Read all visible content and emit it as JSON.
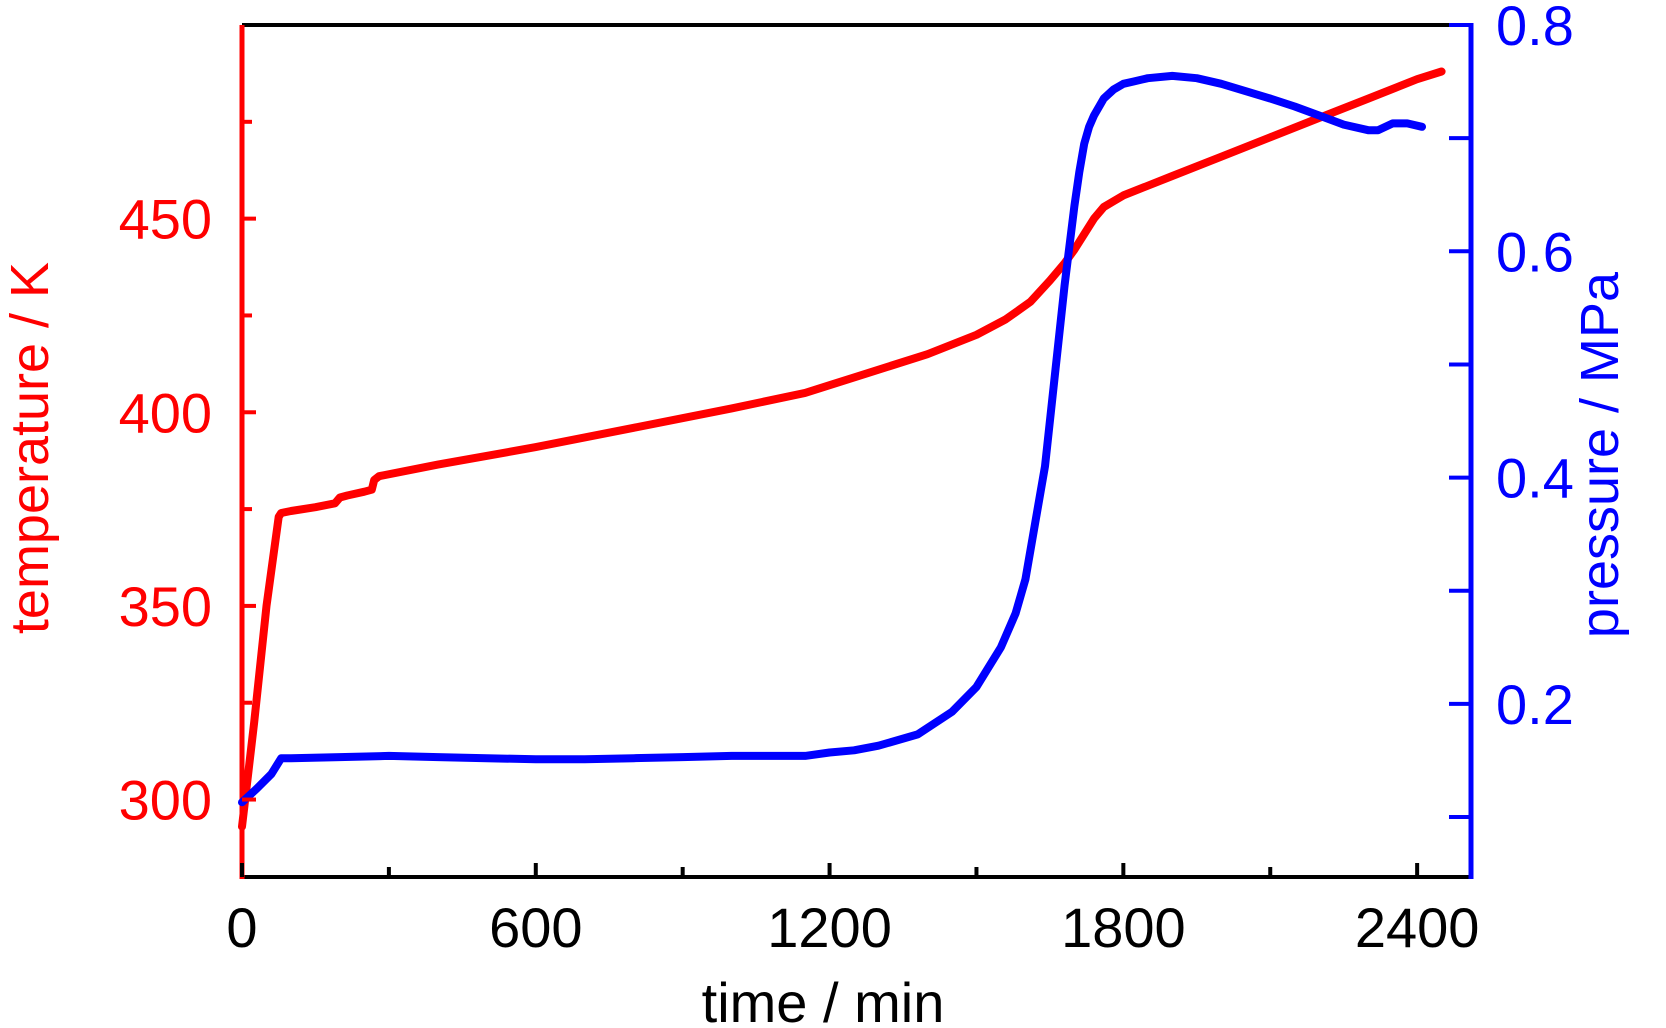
{
  "chart_data": {
    "type": "line",
    "xlabel": "time / min",
    "ylabel_left": "temperature / K",
    "ylabel_right": "pressure / MPa",
    "xlim": [
      0,
      2510
    ],
    "ylim_left": [
      280,
      500
    ],
    "ylim_right": [
      0.047,
      0.8
    ],
    "x_ticks": [
      0,
      600,
      1200,
      1800,
      2400
    ],
    "y_left_ticks": [
      300,
      350,
      400,
      450
    ],
    "y_right_ticks": [
      0.2,
      0.4,
      0.6,
      0.8
    ],
    "x_ticks_minor": [
      300,
      900,
      1500,
      2100
    ],
    "y_left_ticks_minor": [
      325,
      375,
      425,
      475
    ],
    "y_right_ticks_minor": [
      0.1,
      0.3,
      0.5,
      0.7
    ],
    "grid": false,
    "legend": "none",
    "colors": {
      "temperature": "#ff0000",
      "pressure": "#0000ff",
      "axes": "#000000"
    },
    "series": [
      {
        "axis": "left",
        "x": [
          0,
          25,
          50,
          75,
          80,
          100,
          150,
          190,
          200,
          215,
          250,
          265,
          270,
          280,
          400,
          600,
          800,
          1000,
          1150,
          1250,
          1400,
          1500,
          1560,
          1610,
          1650,
          1680,
          1700,
          1720,
          1740,
          1760,
          1780,
          1800,
          1900,
          2000,
          2100,
          2200,
          2300,
          2400,
          2450
        ],
        "y": [
          293,
          320,
          350,
          373,
          374,
          374.5,
          375.5,
          376.5,
          378,
          378.5,
          379.5,
          380,
          382.5,
          383.5,
          386.5,
          391,
          396,
          401,
          405,
          409,
          415,
          420,
          424,
          428.5,
          434,
          438.5,
          442,
          446,
          450,
          453,
          454.5,
          456,
          461,
          466,
          471,
          476,
          481,
          486,
          488
        ]
      },
      {
        "axis": "right",
        "x": [
          0,
          30,
          60,
          80,
          100,
          200,
          300,
          400,
          500,
          600,
          700,
          800,
          900,
          1000,
          1100,
          1150,
          1200,
          1250,
          1300,
          1380,
          1450,
          1500,
          1550,
          1580,
          1600,
          1620,
          1640,
          1660,
          1680,
          1700,
          1710,
          1720,
          1730,
          1740,
          1760,
          1780,
          1800,
          1820,
          1850,
          1900,
          1950,
          2000,
          2100,
          2150,
          2200,
          2250,
          2300,
          2320,
          2350,
          2380,
          2410
        ],
        "y": [
          0.113,
          0.125,
          0.138,
          0.152,
          0.152,
          0.153,
          0.154,
          0.153,
          0.152,
          0.151,
          0.151,
          0.152,
          0.153,
          0.154,
          0.154,
          0.154,
          0.157,
          0.159,
          0.163,
          0.173,
          0.193,
          0.215,
          0.25,
          0.28,
          0.31,
          0.36,
          0.41,
          0.49,
          0.57,
          0.64,
          0.67,
          0.695,
          0.71,
          0.72,
          0.735,
          0.743,
          0.748,
          0.75,
          0.753,
          0.755,
          0.753,
          0.748,
          0.735,
          0.728,
          0.72,
          0.712,
          0.707,
          0.707,
          0.713,
          0.713,
          0.71
        ]
      }
    ]
  }
}
